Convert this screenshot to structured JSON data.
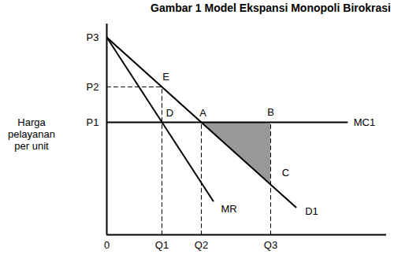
{
  "chart_data": {
    "type": "line",
    "title": "Gambar 1 Model Ekspansi Monopoli Birokrasi",
    "ylabel": "Harga pelayanan per unit",
    "xlim": [
      0,
      355
    ],
    "ylim": [
      0,
      268
    ],
    "xticks": [
      0,
      {
        "value": 70,
        "label": "Q1"
      },
      {
        "value": 120,
        "label": "Q2"
      },
      {
        "value": 208,
        "label": "Q3"
      }
    ],
    "yticks": [
      {
        "value": 143,
        "label": "P1"
      },
      {
        "value": 188,
        "label": "P2"
      },
      {
        "value": 251,
        "label": "P3"
      }
    ],
    "grid": false,
    "series": [
      {
        "name": "D1",
        "color": "#000000",
        "line_style": "solid",
        "x": [
          0,
          240
        ],
        "values": [
          251,
          35
        ]
      },
      {
        "name": "MR",
        "color": "#000000",
        "line_style": "solid",
        "x": [
          0,
          135
        ],
        "values": [
          251,
          43
        ]
      },
      {
        "name": "MC1",
        "color": "#000000",
        "line_style": "solid",
        "x": [
          0,
          305
        ],
        "values": [
          143,
          143
        ]
      }
    ],
    "guides": [
      {
        "color": "#000000",
        "line_style": "dashed",
        "x": [
          0,
          70
        ],
        "values": [
          188,
          188
        ]
      },
      {
        "color": "#000000",
        "line_style": "dashed",
        "x": [
          70,
          70
        ],
        "values": [
          0,
          188
        ]
      },
      {
        "color": "#000000",
        "line_style": "dashed",
        "x": [
          120,
          120
        ],
        "values": [
          0,
          143
        ]
      },
      {
        "color": "#000000",
        "line_style": "dashed",
        "x": [
          208,
          208
        ],
        "values": [
          0,
          143
        ]
      }
    ],
    "shaded_area": {
      "color": "#999999",
      "x": [
        120,
        208
      ],
      "lower": [
        143,
        64
      ],
      "upper": [
        143,
        143
      ]
    },
    "annotations": [
      {
        "text": "E",
        "x": 75,
        "y": 201
      },
      {
        "text": "D",
        "x": 80,
        "y": 155
      },
      {
        "text": "A",
        "x": 122,
        "y": 155
      },
      {
        "text": "B",
        "x": 208,
        "y": 156
      },
      {
        "text": "C",
        "x": 227,
        "y": 79
      },
      {
        "text": "MR",
        "x": 155,
        "y": 33
      },
      {
        "text": "D1",
        "x": 260,
        "y": 30
      },
      {
        "text": "MC1",
        "x": 327,
        "y": 143
      }
    ]
  }
}
